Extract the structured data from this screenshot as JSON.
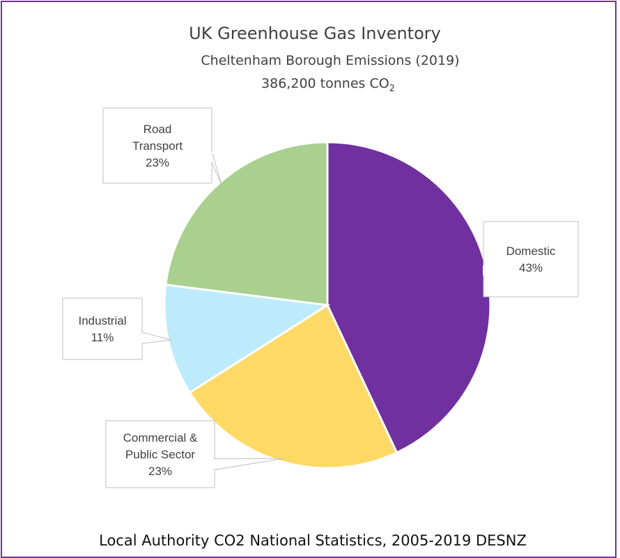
{
  "chart_data": {
    "type": "pie",
    "title": "UK Greenhouse Gas Inventory",
    "subtitle": "Cheltenham Borough Emissions (2019)",
    "total_prefix": "386,200 tonnes CO",
    "total_subscript": "2",
    "source": "Local Authority CO2 National Statistics, 2005-2019 DESNZ",
    "slices": [
      {
        "label_lines": [
          "Domestic"
        ],
        "value": 43,
        "pct_label": "43%",
        "color": "#7030A0"
      },
      {
        "label_lines": [
          "Commercial &",
          "Public Sector"
        ],
        "value": 23,
        "pct_label": "23%",
        "color": "#FFD966"
      },
      {
        "label_lines": [
          "Industrial"
        ],
        "value": 11,
        "pct_label": "11%",
        "color": "#BDEBFB"
      },
      {
        "label_lines": [
          "Road",
          "Transport"
        ],
        "value": 23,
        "pct_label": "23%",
        "color": "#A9D08E"
      }
    ]
  }
}
